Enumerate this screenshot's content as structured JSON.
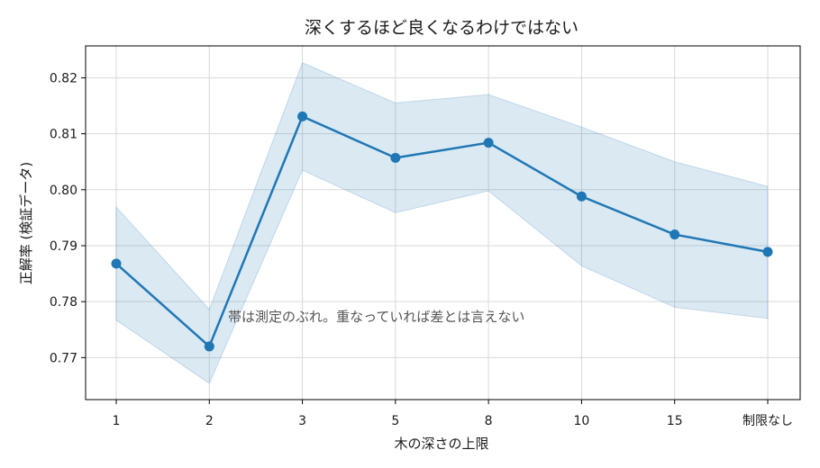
{
  "chart_data": {
    "type": "line",
    "title": "深くするほど良くなるわけではない",
    "xlabel": "木の深さの上限",
    "ylabel": "正解率 (検証データ)",
    "categories": [
      "1",
      "2",
      "3",
      "5",
      "8",
      "10",
      "15",
      "制限なし"
    ],
    "series": [
      {
        "values": [
          0.7868,
          0.772,
          0.8131,
          0.8057,
          0.8084,
          0.7988,
          0.792,
          0.7889
        ],
        "band_upper": [
          0.7969,
          0.7786,
          0.8227,
          0.8155,
          0.817,
          0.8112,
          0.805,
          0.8006
        ],
        "band_lower": [
          0.7767,
          0.7654,
          0.8035,
          0.7959,
          0.7998,
          0.7864,
          0.779,
          0.777
        ]
      }
    ],
    "ylim": [
      0.7625,
      0.8257
    ],
    "yticks": [
      "0.77",
      "0.78",
      "0.79",
      "0.80",
      "0.81",
      "0.82"
    ],
    "yticks_values": [
      0.77,
      0.78,
      0.79,
      0.8,
      0.81,
      0.82
    ],
    "grid": true,
    "annotation": "帯は測定のぶれ。重なっていれば差とは言えない",
    "annotation_anchor": {
      "category_index": 1.2,
      "y": 0.7765
    },
    "colors": {
      "line": "#1f77b4",
      "band": "#1f77b4"
    }
  }
}
